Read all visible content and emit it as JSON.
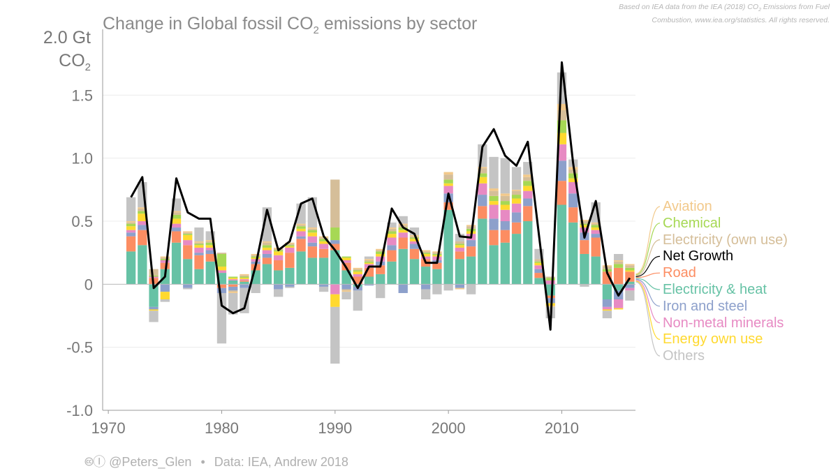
{
  "source_note": {
    "line1_pre": "Based on IEA data from the IEA (2018) CO",
    "line1_sub": "2",
    "line1_post": " Emissions from Fuel",
    "line2": "Combustion, www.iea.org/statistics. All rights reserved."
  },
  "footer": {
    "handle": "@Peters_Glen",
    "data": "Data: IEA, Andrew 2018"
  },
  "chart_data": {
    "type": "bar",
    "stacked": true,
    "title": {
      "pre": "Change in Global fossil CO",
      "sub": "2",
      "post": " emissions by sector"
    },
    "ylabel": {
      "line1": "2.0 Gt",
      "line2_pre": "CO",
      "line2_sub": "2"
    },
    "ylim": [
      -1.0,
      2.0
    ],
    "xlim": [
      1969.5,
      2016.5
    ],
    "yticks": [
      {
        "value": 1.5,
        "label": "1.5"
      },
      {
        "value": 1.0,
        "label": "1.0"
      },
      {
        "value": 0.5,
        "label": "0.5"
      },
      {
        "value": 0,
        "label": "0"
      },
      {
        "value": -0.5,
        "label": "-0.5"
      },
      {
        "value": -1.0,
        "label": "-1.0"
      }
    ],
    "xticks": [
      {
        "value": 1970,
        "label": "1970"
      },
      {
        "value": 1980,
        "label": "1980"
      },
      {
        "value": 1990,
        "label": "1990"
      },
      {
        "value": 2000,
        "label": "2000"
      },
      {
        "value": 2010,
        "label": "2010"
      }
    ],
    "grid": true,
    "legend_position": "right",
    "sector_order": [
      "Electricity & heat",
      "Road",
      "Iron and steel",
      "Non-metal minerals",
      "Energy own use",
      "Chemical",
      "Electricity (own use)",
      "Aviation",
      "Others"
    ],
    "years": [
      1972,
      1973,
      1974,
      1975,
      1976,
      1977,
      1978,
      1979,
      1980,
      1981,
      1982,
      1983,
      1984,
      1985,
      1986,
      1987,
      1988,
      1989,
      1990,
      1991,
      1992,
      1993,
      1994,
      1995,
      1996,
      1997,
      1998,
      1999,
      2000,
      2001,
      2002,
      2003,
      2004,
      2005,
      2006,
      2007,
      2008,
      2009,
      2010,
      2011,
      2012,
      2013,
      2014,
      2015,
      2016
    ],
    "series": [
      {
        "name": "Electricity & heat",
        "color": "#66c2a5",
        "values": [
          0.26,
          0.31,
          -0.18,
          0.12,
          0.33,
          0.2,
          0.12,
          0.18,
          0.09,
          0.03,
          0.02,
          0.11,
          0.16,
          0.11,
          0.13,
          0.26,
          0.21,
          0.21,
          0.27,
          0.11,
          -0.02,
          0.06,
          0.08,
          0.18,
          0.28,
          0.2,
          0.14,
          0.12,
          0.59,
          0.2,
          0.22,
          0.52,
          0.31,
          0.33,
          0.4,
          0.5,
          0.05,
          -0.09,
          0.63,
          0.49,
          0.24,
          0.22,
          -0.12,
          -0.05,
          0.02
        ]
      },
      {
        "name": "Road",
        "color": "#fc8d62",
        "values": [
          0.12,
          0.12,
          0.05,
          0.05,
          0.09,
          0.11,
          0.11,
          0.06,
          -0.03,
          -0.02,
          0.01,
          0.05,
          0.05,
          0.08,
          0.12,
          0.1,
          0.09,
          0.07,
          0.05,
          0.06,
          0.06,
          0.07,
          0.07,
          0.09,
          0.09,
          0.08,
          0.06,
          0.05,
          0.06,
          0.06,
          0.08,
          0.1,
          0.12,
          0.1,
          0.09,
          0.12,
          0.04,
          -0.02,
          0.19,
          0.12,
          0.11,
          0.15,
          0.1,
          0.13,
          0.08
        ]
      },
      {
        "name": "Iron and steel",
        "color": "#8da0cb",
        "values": [
          0.03,
          0.04,
          -0.02,
          -0.06,
          0.03,
          -0.03,
          0.02,
          0.03,
          -0.04,
          -0.03,
          -0.03,
          0.02,
          0.03,
          -0.04,
          -0.02,
          0.02,
          0.03,
          -0.02,
          0.03,
          -0.04,
          -0.03,
          -0.01,
          0.03,
          0.04,
          -0.07,
          0.04,
          -0.04,
          0.02,
          0.07,
          -0.03,
          0.05,
          0.09,
          0.09,
          0.07,
          0.08,
          0.06,
          0.03,
          -0.04,
          0.16,
          0.11,
          0.06,
          0.03,
          -0.06,
          -0.07,
          -0.03
        ]
      },
      {
        "name": "Non-metal minerals",
        "color": "#e78ac3",
        "values": [
          0.02,
          0.03,
          0.01,
          0.02,
          0.03,
          0.04,
          0.04,
          0.02,
          0.02,
          0.01,
          0.01,
          0.02,
          0.03,
          0.04,
          0.04,
          0.04,
          0.05,
          0.04,
          -0.08,
          0.02,
          0.02,
          0.03,
          0.04,
          0.06,
          0.04,
          0.02,
          0.02,
          0.03,
          0.06,
          0.03,
          0.05,
          0.09,
          0.11,
          0.09,
          0.07,
          0.06,
          0.03,
          0.03,
          0.13,
          0.09,
          0.04,
          0.03,
          -0.02,
          -0.07,
          -0.02
        ]
      },
      {
        "name": "Energy own use",
        "color": "#ffd92f",
        "values": [
          0.03,
          0.06,
          -0.01,
          -0.06,
          0.04,
          0.04,
          0.02,
          0.02,
          0.03,
          0.01,
          0.01,
          0.01,
          0.02,
          0.03,
          0.01,
          0.02,
          0.03,
          0.02,
          -0.1,
          0.02,
          0.02,
          0.01,
          0.02,
          0.03,
          0.02,
          0.02,
          0.02,
          0.01,
          0.02,
          0.02,
          0.02,
          0.05,
          0.03,
          0.04,
          0.04,
          0.04,
          0.02,
          -0.02,
          0.09,
          0.03,
          0.02,
          0.02,
          -0.01,
          -0.01,
          0.01
        ]
      },
      {
        "name": "Chemical",
        "color": "#a6d854",
        "values": [
          0.02,
          0.02,
          0.01,
          0.01,
          0.03,
          0.01,
          0.01,
          0.02,
          0.1,
          0.01,
          0.01,
          0.01,
          0.02,
          0.01,
          0.01,
          0.02,
          0.02,
          0.02,
          0.1,
          0.01,
          0.01,
          0.01,
          0.02,
          0.02,
          0.02,
          0.01,
          0.01,
          0.01,
          0.03,
          0.01,
          0.02,
          0.03,
          0.04,
          0.03,
          0.03,
          0.04,
          0.01,
          0.02,
          0.1,
          0.04,
          0.01,
          0.02,
          0.02,
          0.03,
          0.02
        ]
      },
      {
        "name": "Electricity (own use)",
        "color": "#d5be99",
        "values": [
          0.01,
          0.02,
          0.05,
          0.01,
          0.02,
          0.01,
          0.01,
          0.01,
          0.01,
          -0.01,
          0.01,
          0.01,
          0.02,
          0.01,
          0.01,
          0.01,
          0.01,
          0.01,
          0.38,
          -0.01,
          0.01,
          0.01,
          0.01,
          0.02,
          0.02,
          0.01,
          0.01,
          0.01,
          0.04,
          0.02,
          0.02,
          0.04,
          0.04,
          0.04,
          0.03,
          0.03,
          0.02,
          0.01,
          0.08,
          0.03,
          0.02,
          0.01,
          0.02,
          0.02,
          0.02
        ]
      },
      {
        "name": "Aviation",
        "color": "#f2c98b",
        "values": [
          0.01,
          0.01,
          0.0,
          0.01,
          0.01,
          0.01,
          0.01,
          0.01,
          0.0,
          -0.01,
          0.01,
          0.01,
          0.01,
          0.01,
          0.01,
          0.01,
          0.01,
          0.01,
          0.0,
          -0.01,
          0.01,
          0.01,
          0.01,
          0.01,
          0.01,
          0.01,
          0.01,
          0.01,
          0.02,
          -0.01,
          0.01,
          0.01,
          0.02,
          0.02,
          0.01,
          0.02,
          0.0,
          -0.01,
          0.05,
          0.02,
          0.01,
          0.01,
          0.01,
          0.01,
          0.01
        ]
      },
      {
        "name": "Others",
        "color": "#c4c4c4",
        "values": [
          0.19,
          0.2,
          -0.09,
          -0.02,
          0.1,
          -0.01,
          0.11,
          0.07,
          -0.4,
          -0.17,
          -0.2,
          -0.07,
          0.27,
          -0.06,
          -0.01,
          0.16,
          0.24,
          -0.04,
          -0.45,
          -0.06,
          -0.16,
          0.02,
          -0.11,
          0.04,
          0.06,
          0.06,
          -0.08,
          -0.08,
          -0.05,
          0.06,
          -0.08,
          0.18,
          0.25,
          0.28,
          0.18,
          0.1,
          0.08,
          -0.09,
          0.25,
          0.06,
          -0.02,
          0.16,
          -0.06,
          0.05,
          -0.08
        ]
      }
    ],
    "net_growth": {
      "name": "Net Growth",
      "color": "#000000",
      "values": [
        0.69,
        0.85,
        -0.03,
        0.06,
        0.84,
        0.57,
        0.52,
        0.52,
        -0.17,
        -0.23,
        -0.19,
        0.15,
        0.59,
        0.27,
        0.34,
        0.64,
        0.68,
        0.38,
        0.27,
        0.13,
        -0.03,
        0.14,
        0.14,
        0.6,
        0.45,
        0.4,
        0.17,
        0.17,
        0.72,
        0.38,
        0.37,
        1.09,
        1.23,
        1.02,
        0.94,
        1.13,
        0.38,
        -0.36,
        1.76,
        0.96,
        0.37,
        0.66,
        0.09,
        -0.09,
        0.05
      ]
    },
    "legend": [
      {
        "label": "Aviation",
        "color": "#f2c98b"
      },
      {
        "label": "Chemical",
        "color": "#a6d854"
      },
      {
        "label": "Electricity (own use)",
        "color": "#d5be99"
      },
      {
        "label": "Net Growth",
        "color": "#000000"
      },
      {
        "label": "Road",
        "color": "#fc8d62"
      },
      {
        "label": "Electricity & heat",
        "color": "#66c2a5"
      },
      {
        "label": "Iron and steel",
        "color": "#8da0cb"
      },
      {
        "label": "Non-metal minerals",
        "color": "#e78ac3"
      },
      {
        "label": "Energy own use",
        "color": "#ffd92f"
      },
      {
        "label": "Others",
        "color": "#c4c4c4"
      }
    ]
  }
}
